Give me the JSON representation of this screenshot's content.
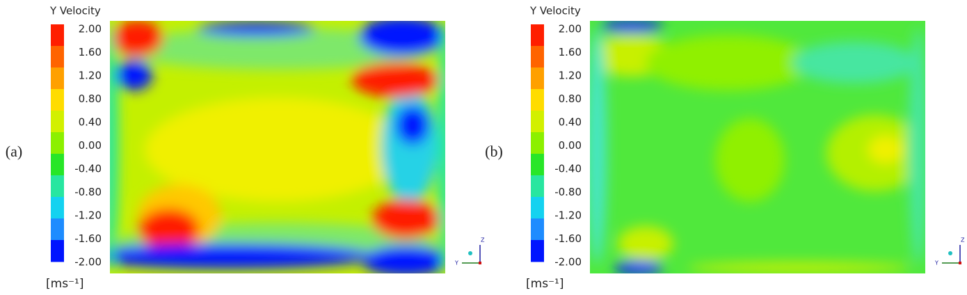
{
  "panels": [
    {
      "label": "(a)",
      "colorbar_title": "Y Velocity",
      "ticks": [
        "2.00",
        "1.60",
        "1.20",
        "0.80",
        "0.40",
        "0.00",
        "-0.40",
        "-0.80",
        "-1.20",
        "-1.60",
        "-2.00"
      ],
      "unit": "[ms⁻¹]",
      "axis_labels": [
        "Z",
        "Y"
      ]
    },
    {
      "label": "(b)",
      "colorbar_title": "Y Velocity",
      "ticks": [
        "2.00",
        "1.60",
        "1.20",
        "0.80",
        "0.40",
        "0.00",
        "-0.40",
        "-0.80",
        "-1.20",
        "-1.60",
        "-2.00"
      ],
      "unit": "[ms⁻¹]",
      "axis_labels": [
        "Z",
        "Y"
      ]
    }
  ]
}
